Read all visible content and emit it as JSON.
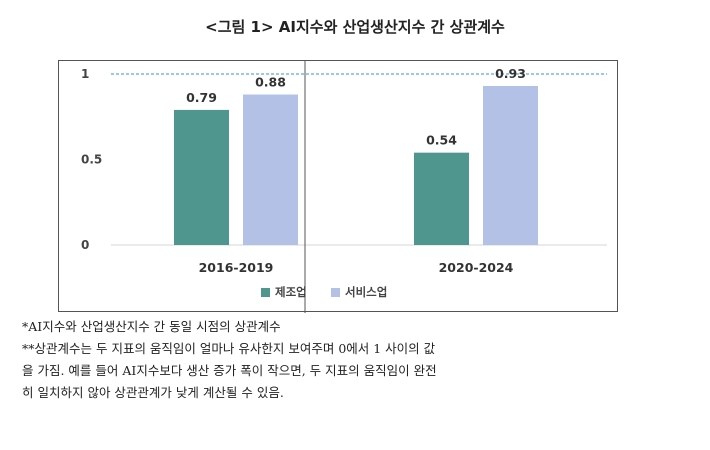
{
  "figure_title": "<그림 1> AI지수와 산업생산지수 간 상관계수",
  "notes": [
    "*AI지수와 산업생산지수 간 동일 시점의 상관계수",
    "**상관계수는 두 지표의 움직임이 얼마나 유사한지 보여주며 0에서 1 사이의 값",
    "을 가짐. 예를 들어 AI지수보다 생산 증가 폭이 작으면, 두 지표의 움직임이 완전",
    "히 일치하지 않아 상관관계가 낮게 계산될 수 있음."
  ],
  "chart_data": {
    "type": "bar",
    "title": "",
    "xlabel": "",
    "ylabel": "",
    "categories": [
      "2016-2019",
      "2020-2024"
    ],
    "series": [
      {
        "name": "제조업",
        "values": [
          0.79,
          0.54
        ],
        "color": "#4f968e"
      },
      {
        "name": "서비스업",
        "values": [
          0.88,
          0.93
        ],
        "color": "#b4c1e6"
      }
    ],
    "data_labels": [
      [
        "0.79",
        "0.54"
      ],
      [
        "0.88",
        "0.93"
      ]
    ],
    "yticks": [
      {
        "value": 0,
        "label": "0"
      },
      {
        "value": 0.5,
        "label": "0.5"
      },
      {
        "value": 1,
        "label": "1"
      }
    ],
    "ylim": [
      0,
      1
    ],
    "reference_line": {
      "value": 1,
      "style": "dashed",
      "color": "#3b8fd0"
    },
    "panel_divider": true,
    "grid": false,
    "legend_position": "bottom"
  }
}
